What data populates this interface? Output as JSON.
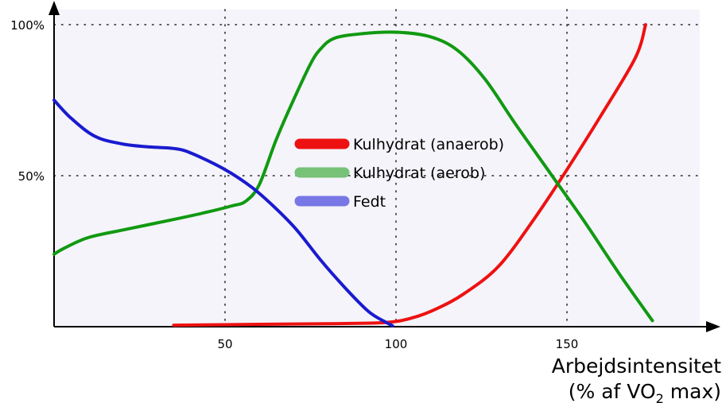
{
  "chart_data": {
    "type": "line",
    "title": "",
    "xlabel_line1": "Arbejdsintensitet",
    "xlabel_line2_prefix": "(% af VO",
    "xlabel_line2_sub": "2",
    "xlabel_line2_suffix": " max)",
    "ylabel": "",
    "xlim": [
      0,
      190
    ],
    "ylim": [
      0,
      100
    ],
    "x_ticks": [
      {
        "value": 50,
        "label": "50"
      },
      {
        "value": 100,
        "label": "100"
      },
      {
        "value": 150,
        "label": "150"
      }
    ],
    "y_ticks": [
      {
        "value": 50,
        "label": "50%"
      },
      {
        "value": 100,
        "label": "100%"
      }
    ],
    "grid": "dotted",
    "legend_position": "center",
    "series": [
      {
        "name": "Kulhydrat (anaerob)",
        "color": "#ee1111",
        "legend_color": "#ee1111",
        "x": [
          35,
          60,
          80,
          97,
          105,
          112,
          120,
          130,
          140,
          150,
          160,
          170,
          173
        ],
        "y": [
          0.5,
          0.8,
          1.0,
          1.4,
          3,
          6,
          11,
          20,
          35,
          52,
          70,
          89,
          100
        ]
      },
      {
        "name": "Kulhydrat (aerob)",
        "color": "#119911",
        "legend_color": "#77c277",
        "x": [
          0,
          3,
          10,
          20,
          35,
          45,
          52,
          56,
          60,
          65,
          70,
          75,
          78,
          82,
          90,
          100,
          110,
          118,
          126,
          135,
          145,
          155,
          165,
          175
        ],
        "y": [
          24,
          26,
          29.5,
          32,
          35.5,
          38,
          40,
          41.5,
          47,
          62,
          75,
          87,
          92,
          95.5,
          97,
          97.5,
          96,
          91.5,
          82,
          67,
          51,
          35,
          18,
          2
        ]
      },
      {
        "name": "Fedt",
        "color": "#1a1ad0",
        "legend_color": "#7777e6",
        "x": [
          0,
          5,
          12,
          20,
          28,
          35,
          40,
          50,
          58,
          65,
          71,
          78,
          85,
          92,
          97,
          99
        ],
        "y": [
          75,
          69,
          63,
          60.5,
          59.5,
          59,
          57.5,
          52,
          46,
          39,
          32,
          22,
          13,
          5,
          1.5,
          0.3
        ]
      }
    ]
  }
}
